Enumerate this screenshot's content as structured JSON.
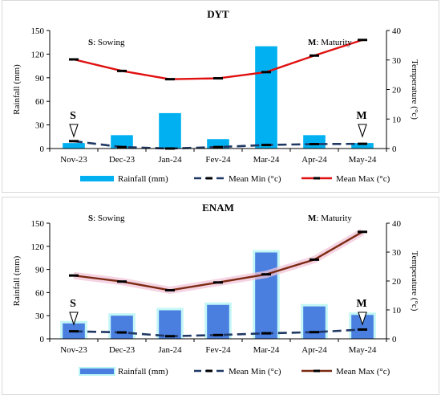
{
  "chart_data": [
    {
      "type": "bar+line",
      "title": "DYT",
      "ylabel": "Rainfall (mm)",
      "y2label": "Temperature (°c)",
      "ylim": [
        0,
        150
      ],
      "yticks": [
        0,
        30,
        60,
        90,
        120,
        150
      ],
      "y2lim": [
        0,
        40
      ],
      "y2ticks": [
        0,
        10,
        20,
        30,
        40
      ],
      "categories": [
        "Nov-23",
        "Dec-23",
        "Jan-24",
        "Fev-24",
        "Mar-24",
        "Apr-24",
        "May-24"
      ],
      "series": [
        {
          "name": "Rainfall (mm)",
          "kind": "bar",
          "axis": "left",
          "color": "#00b0f0",
          "values": [
            7,
            17,
            45,
            12,
            130,
            17,
            7
          ]
        },
        {
          "name": "Mean Min (°c)",
          "kind": "line",
          "axis": "right",
          "color": "#1f3864",
          "dashed": true,
          "values": [
            2.5,
            0.5,
            0.0,
            0.5,
            1.2,
            1.5,
            1.6
          ]
        },
        {
          "name": "Mean Max (°c)",
          "kind": "line",
          "axis": "right",
          "color": "#e01010",
          "dashed": false,
          "values": [
            30.2,
            26.3,
            23.5,
            23.8,
            25.9,
            31.5,
            36.8
          ]
        }
      ],
      "annotations": [
        {
          "prefix": "S",
          "text": ": Sowing",
          "position": "top-left"
        },
        {
          "prefix": "M",
          "text": ": Maturity",
          "position": "top-right"
        }
      ],
      "markers": [
        {
          "label": "S",
          "category": "Nov-23"
        },
        {
          "label": "M",
          "category": "May-24"
        }
      ],
      "legend": "bottom"
    },
    {
      "type": "bar+line",
      "title": "ENAM",
      "ylabel": "Rainfall (mm)",
      "y2label": "Temperature (°c)",
      "ylim": [
        0,
        150
      ],
      "yticks": [
        0,
        30,
        60,
        90,
        120,
        150
      ],
      "y2lim": [
        0,
        40
      ],
      "y2ticks": [
        0,
        10,
        20,
        30,
        40
      ],
      "categories": [
        "Nov-23",
        "Dec-23",
        "Jan-24",
        "Fev-24",
        "Mar-24",
        "Apr-24",
        "May-24"
      ],
      "series": [
        {
          "name": "Rainfall (mm)",
          "kind": "bar",
          "axis": "left",
          "color": "#4a7fe0",
          "glow": "#b8f4f4",
          "values": [
            20,
            30,
            37,
            44,
            112,
            42,
            31
          ]
        },
        {
          "name": "Mean Min (°c)",
          "kind": "line",
          "axis": "right",
          "color": "#1f3864",
          "dashed": true,
          "values": [
            2.6,
            2.2,
            0.9,
            1.3,
            1.9,
            2.3,
            3.2
          ]
        },
        {
          "name": "Mean Max (°c)",
          "kind": "line",
          "axis": "right",
          "color": "#7b2a12",
          "glow": "#f2c4d8",
          "dashed": false,
          "values": [
            21.9,
            19.8,
            16.8,
            19.5,
            22.3,
            27.4,
            37.0
          ]
        }
      ],
      "annotations": [
        {
          "prefix": "S",
          "text": ": Sowing",
          "position": "top-left"
        },
        {
          "prefix": "M",
          "text": ": Maturity",
          "position": "top-right"
        }
      ],
      "markers": [
        {
          "label": "S",
          "category": "Nov-23"
        },
        {
          "label": "M",
          "category": "May-24"
        }
      ],
      "legend": "bottom"
    }
  ]
}
